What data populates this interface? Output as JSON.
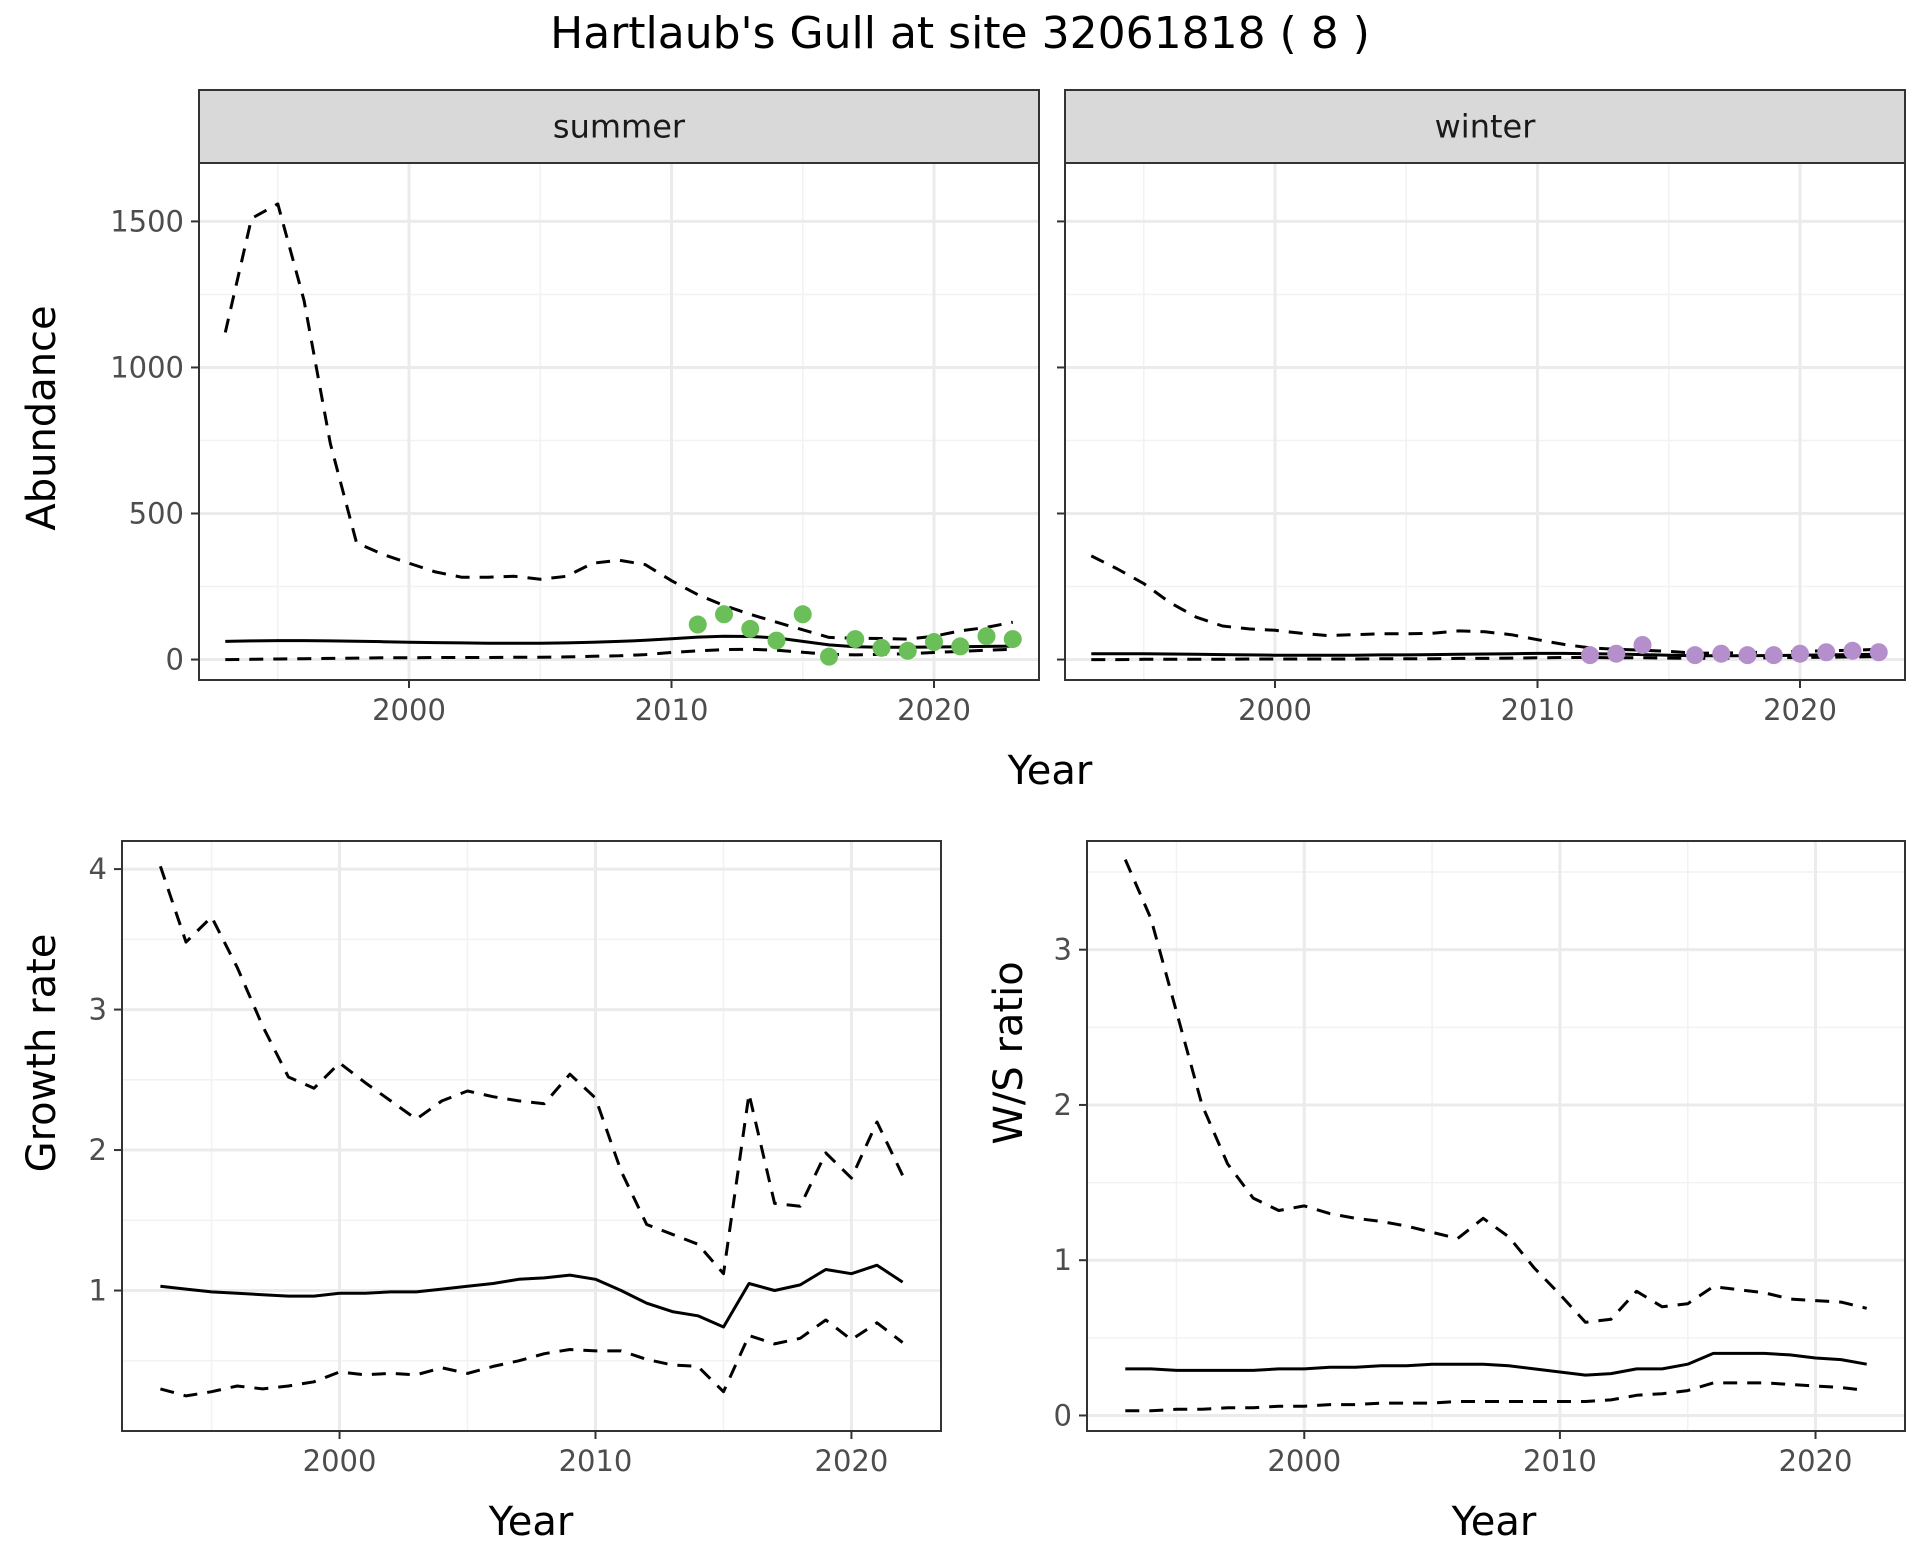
{
  "title": "Hartlaub's Gull at site 32061818 ( 8 )",
  "colors": {
    "summer_points": "#6abf59",
    "winter_points": "#b48fcb",
    "lines": "#000000",
    "grid_major": "#ebebeb",
    "grid_minor": "#f2f2f2",
    "strip_fill": "#d9d9d9",
    "border": "#333333"
  },
  "labels": {
    "abundance_ylabel": "Abundance",
    "top_xlabel": "Year",
    "growth_ylabel": "Growth rate",
    "growth_xlabel": "Year",
    "ratio_ylabel": "W/S ratio",
    "ratio_xlabel": "Year"
  },
  "chart_data": [
    {
      "type": "line",
      "facet": "summer",
      "xlabel": "Year",
      "ylabel": "Abundance",
      "xlim": [
        1992,
        2024
      ],
      "ylim": [
        -70,
        1700
      ],
      "xticks": [
        2000,
        2010,
        2020
      ],
      "yticks": [
        0,
        500,
        1000,
        1500
      ],
      "grid": true,
      "x": [
        1993,
        1994,
        1995,
        1996,
        1997,
        1998,
        1999,
        2000,
        2001,
        2002,
        2003,
        2004,
        2005,
        2006,
        2007,
        2008,
        2009,
        2010,
        2011,
        2012,
        2013,
        2014,
        2015,
        2016,
        2017,
        2018,
        2019,
        2020,
        2021,
        2022,
        2023
      ],
      "series": [
        {
          "style": "solid",
          "values": [
            62,
            64,
            65,
            65,
            64,
            63,
            61,
            59,
            58,
            57,
            56,
            56,
            56,
            57,
            59,
            62,
            66,
            71,
            77,
            80,
            79,
            74,
            62,
            50,
            44,
            42,
            42,
            43,
            44,
            45,
            46
          ]
        },
        {
          "style": "dashed",
          "values": [
            1120,
            1510,
            1560,
            1230,
            740,
            400,
            360,
            330,
            300,
            282,
            282,
            285,
            275,
            285,
            330,
            340,
            325,
            270,
            222,
            185,
            155,
            128,
            102,
            76,
            73,
            72,
            70,
            80,
            98,
            110,
            128
          ]
        },
        {
          "style": "dashed",
          "values": [
            0,
            1,
            2,
            3,
            4,
            5,
            6,
            6,
            7,
            7,
            7,
            8,
            8,
            9,
            11,
            13,
            17,
            24,
            30,
            34,
            35,
            32,
            25,
            18,
            16,
            18,
            20,
            24,
            28,
            32,
            35
          ]
        }
      ],
      "points": {
        "x": [
          2011,
          2012,
          2013,
          2014,
          2015,
          2016,
          2017,
          2018,
          2019,
          2020,
          2021,
          2022,
          2023
        ],
        "y": [
          120,
          155,
          105,
          65,
          155,
          10,
          70,
          40,
          30,
          60,
          45,
          80,
          70
        ]
      }
    },
    {
      "type": "line",
      "facet": "winter",
      "xlabel": "Year",
      "ylabel": "Abundance",
      "xlim": [
        1992,
        2024
      ],
      "ylim": [
        -70,
        1700
      ],
      "xticks": [
        2000,
        2010,
        2020
      ],
      "yticks": [
        0,
        500,
        1000,
        1500
      ],
      "grid": true,
      "x": [
        1993,
        1994,
        1995,
        1996,
        1997,
        1998,
        1999,
        2000,
        2001,
        2002,
        2003,
        2004,
        2005,
        2006,
        2007,
        2008,
        2009,
        2010,
        2011,
        2012,
        2013,
        2014,
        2015,
        2016,
        2017,
        2018,
        2019,
        2020,
        2021,
        2022,
        2023
      ],
      "series": [
        {
          "style": "solid",
          "values": [
            20,
            20,
            20,
            19,
            18,
            17,
            16,
            15,
            15,
            15,
            15,
            16,
            16,
            17,
            18,
            19,
            20,
            21,
            21,
            20,
            19,
            17,
            15,
            13,
            13,
            13,
            14,
            15,
            16,
            17,
            18
          ]
        },
        {
          "style": "dashed",
          "values": [
            355,
            310,
            260,
            195,
            145,
            115,
            105,
            100,
            90,
            82,
            85,
            88,
            88,
            90,
            98,
            95,
            85,
            68,
            52,
            40,
            35,
            32,
            28,
            22,
            22,
            24,
            26,
            28,
            30,
            32,
            35
          ]
        },
        {
          "style": "dashed",
          "values": [
            0,
            0,
            1,
            1,
            1,
            1,
            2,
            2,
            2,
            2,
            2,
            3,
            3,
            3,
            4,
            4,
            5,
            6,
            7,
            7,
            6,
            6,
            5,
            4,
            5,
            5,
            6,
            7,
            8,
            9,
            10
          ]
        }
      ],
      "points": {
        "x": [
          2012,
          2013,
          2014,
          2016,
          2017,
          2018,
          2019,
          2020,
          2021,
          2022,
          2023
        ],
        "y": [
          15,
          20,
          50,
          15,
          20,
          15,
          15,
          20,
          25,
          30,
          25
        ]
      }
    },
    {
      "type": "line",
      "xlabel": "Year",
      "ylabel": "Growth rate",
      "xlim": [
        1991.5,
        2023.5
      ],
      "ylim": [
        0,
        4.2
      ],
      "xticks": [
        2000,
        2010,
        2020
      ],
      "yticks": [
        1,
        2,
        3,
        4
      ],
      "grid": true,
      "x": [
        1993,
        1994,
        1995,
        1996,
        1997,
        1998,
        1999,
        2000,
        2001,
        2002,
        2003,
        2004,
        2005,
        2006,
        2007,
        2008,
        2009,
        2010,
        2011,
        2012,
        2013,
        2014,
        2015,
        2016,
        2017,
        2018,
        2019,
        2020,
        2021,
        2022
      ],
      "series": [
        {
          "style": "solid",
          "values": [
            1.03,
            1.01,
            0.99,
            0.98,
            0.97,
            0.96,
            0.96,
            0.98,
            0.98,
            0.99,
            0.99,
            1.01,
            1.03,
            1.05,
            1.08,
            1.09,
            1.11,
            1.08,
            1.0,
            0.91,
            0.85,
            0.82,
            0.74,
            1.05,
            1.0,
            1.04,
            1.15,
            1.12,
            1.18,
            1.06
          ]
        },
        {
          "style": "dashed",
          "values": [
            4.02,
            3.48,
            3.66,
            3.3,
            2.88,
            2.52,
            2.44,
            2.62,
            2.48,
            2.35,
            2.22,
            2.35,
            2.42,
            2.38,
            2.35,
            2.33,
            2.54,
            2.37,
            1.85,
            1.47,
            1.4,
            1.33,
            1.12,
            2.4,
            1.62,
            1.6,
            1.98,
            1.8,
            2.2,
            1.82
          ]
        },
        {
          "style": "dashed",
          "values": [
            0.3,
            0.25,
            0.28,
            0.32,
            0.3,
            0.32,
            0.35,
            0.42,
            0.4,
            0.41,
            0.4,
            0.45,
            0.41,
            0.46,
            0.5,
            0.55,
            0.58,
            0.57,
            0.57,
            0.51,
            0.47,
            0.46,
            0.28,
            0.68,
            0.62,
            0.66,
            0.79,
            0.65,
            0.77,
            0.63
          ]
        }
      ]
    },
    {
      "type": "line",
      "xlabel": "Year",
      "ylabel": "W/S ratio",
      "xlim": [
        1991.5,
        2023.5
      ],
      "ylim": [
        -0.1,
        3.7
      ],
      "xticks": [
        2000,
        2010,
        2020
      ],
      "yticks": [
        0,
        1,
        2,
        3
      ],
      "grid": true,
      "x": [
        1993,
        1994,
        1995,
        1996,
        1997,
        1998,
        1999,
        2000,
        2001,
        2002,
        2003,
        2004,
        2005,
        2006,
        2007,
        2008,
        2009,
        2010,
        2011,
        2012,
        2013,
        2014,
        2015,
        2016,
        2017,
        2018,
        2019,
        2020,
        2021,
        2022
      ],
      "series": [
        {
          "style": "solid",
          "values": [
            0.3,
            0.3,
            0.29,
            0.29,
            0.29,
            0.29,
            0.3,
            0.3,
            0.31,
            0.31,
            0.32,
            0.32,
            0.33,
            0.33,
            0.33,
            0.32,
            0.3,
            0.28,
            0.26,
            0.27,
            0.3,
            0.3,
            0.33,
            0.4,
            0.4,
            0.4,
            0.39,
            0.37,
            0.36,
            0.33
          ]
        },
        {
          "style": "dashed",
          "values": [
            3.58,
            3.2,
            2.6,
            2.0,
            1.62,
            1.4,
            1.32,
            1.35,
            1.3,
            1.27,
            1.25,
            1.22,
            1.18,
            1.14,
            1.27,
            1.15,
            0.95,
            0.78,
            0.6,
            0.62,
            0.8,
            0.7,
            0.72,
            0.83,
            0.81,
            0.79,
            0.75,
            0.74,
            0.73,
            0.69
          ]
        },
        {
          "style": "dashed",
          "values": [
            0.03,
            0.03,
            0.04,
            0.04,
            0.05,
            0.05,
            0.06,
            0.06,
            0.07,
            0.07,
            0.08,
            0.08,
            0.08,
            0.09,
            0.09,
            0.09,
            0.09,
            0.09,
            0.09,
            0.1,
            0.13,
            0.14,
            0.16,
            0.21,
            0.21,
            0.21,
            0.2,
            0.19,
            0.18,
            0.16
          ]
        }
      ]
    }
  ]
}
